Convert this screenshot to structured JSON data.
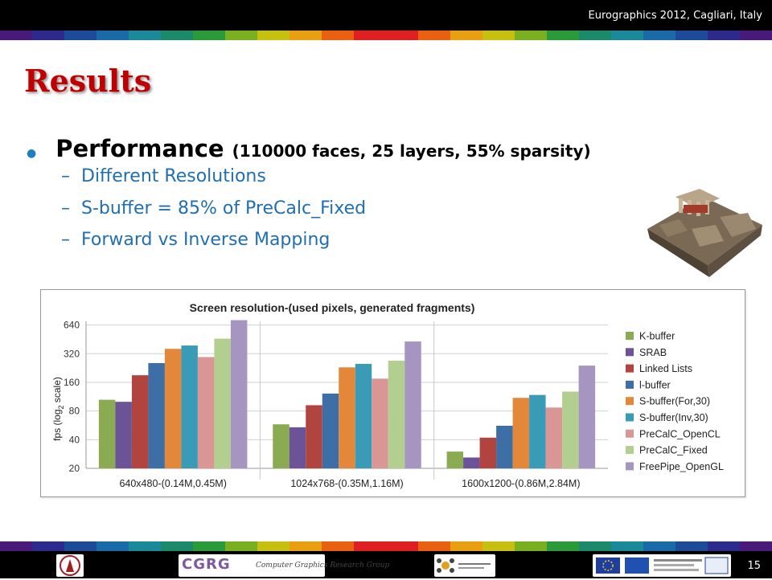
{
  "header": {
    "conference": "Eurographics 2012, Cagliari, Italy"
  },
  "slide": {
    "title": "Results",
    "bullet_main": "Performance",
    "bullet_detail": "(110000 faces, 25 layers, 55% sparsity)",
    "subitems": [
      "Different Resolutions",
      "S-buffer = 85% of PreCalc_Fixed",
      "Forward vs Inverse Mapping"
    ],
    "dash": "–"
  },
  "footer": {
    "page_number": "15",
    "cgrg_logo": "CGRG",
    "cgrg_caption": "Computer Graphics Research Group"
  },
  "colors": {
    "title": "#c00000",
    "subitem": "#1f6fb2",
    "stripe": [
      "#4a1a7a",
      "#2c2a8c",
      "#1e4a9a",
      "#1a6aa8",
      "#1a8a9a",
      "#1a8a6a",
      "#2a9a3a",
      "#7ab020",
      "#c8c010",
      "#e8a010",
      "#e86010",
      "#e02020",
      "#e02020",
      "#e86010",
      "#e8a010",
      "#c8c010",
      "#7ab020",
      "#2a9a3a",
      "#1a8a6a",
      "#1a8a9a",
      "#1a6aa8",
      "#1e4a9a",
      "#2c2a8c",
      "#4a1a7a"
    ]
  },
  "chart_data": {
    "type": "bar",
    "title": "Screen resolution-(used pixels, generated fragments)",
    "ylabel": "fps (log",
    "ylabel_sub": "2",
    "ylabel_tail": " scale)",
    "yscale": "log2",
    "yticks": [
      20,
      40,
      80,
      160,
      320,
      640
    ],
    "ylim": [
      20,
      700
    ],
    "grid": true,
    "legend_position": "right",
    "categories": [
      "640x480-(0.14M,0.45M)",
      "1024x768-(0.35M,1.16M)",
      "1600x1200-(0.86M,2.84M)"
    ],
    "series": [
      {
        "name": "K-buffer",
        "color": "#8aab52",
        "values": [
          105,
          58,
          30
        ]
      },
      {
        "name": "SRAB",
        "color": "#6c5397",
        "values": [
          100,
          54,
          26
        ]
      },
      {
        "name": "Linked Lists",
        "color": "#b2443f",
        "values": [
          190,
          92,
          42
        ]
      },
      {
        "name": "l-buffer",
        "color": "#3e6ea6",
        "values": [
          255,
          122,
          56
        ]
      },
      {
        "name": "S-buffer(For,30)",
        "color": "#e3873a",
        "values": [
          360,
          230,
          110
        ]
      },
      {
        "name": "S-buffer(Inv,30)",
        "color": "#3a9bb7",
        "values": [
          390,
          250,
          118
        ]
      },
      {
        "name": "PreCalC_OpenCL",
        "color": "#d99694",
        "values": [
          295,
          175,
          87
        ]
      },
      {
        "name": "PreCalC_Fixed",
        "color": "#b3cf8f",
        "values": [
          460,
          270,
          128
        ]
      },
      {
        "name": "FreePipe_OpenGL",
        "color": "#a695c1",
        "values": [
          720,
          430,
          240
        ]
      }
    ]
  }
}
